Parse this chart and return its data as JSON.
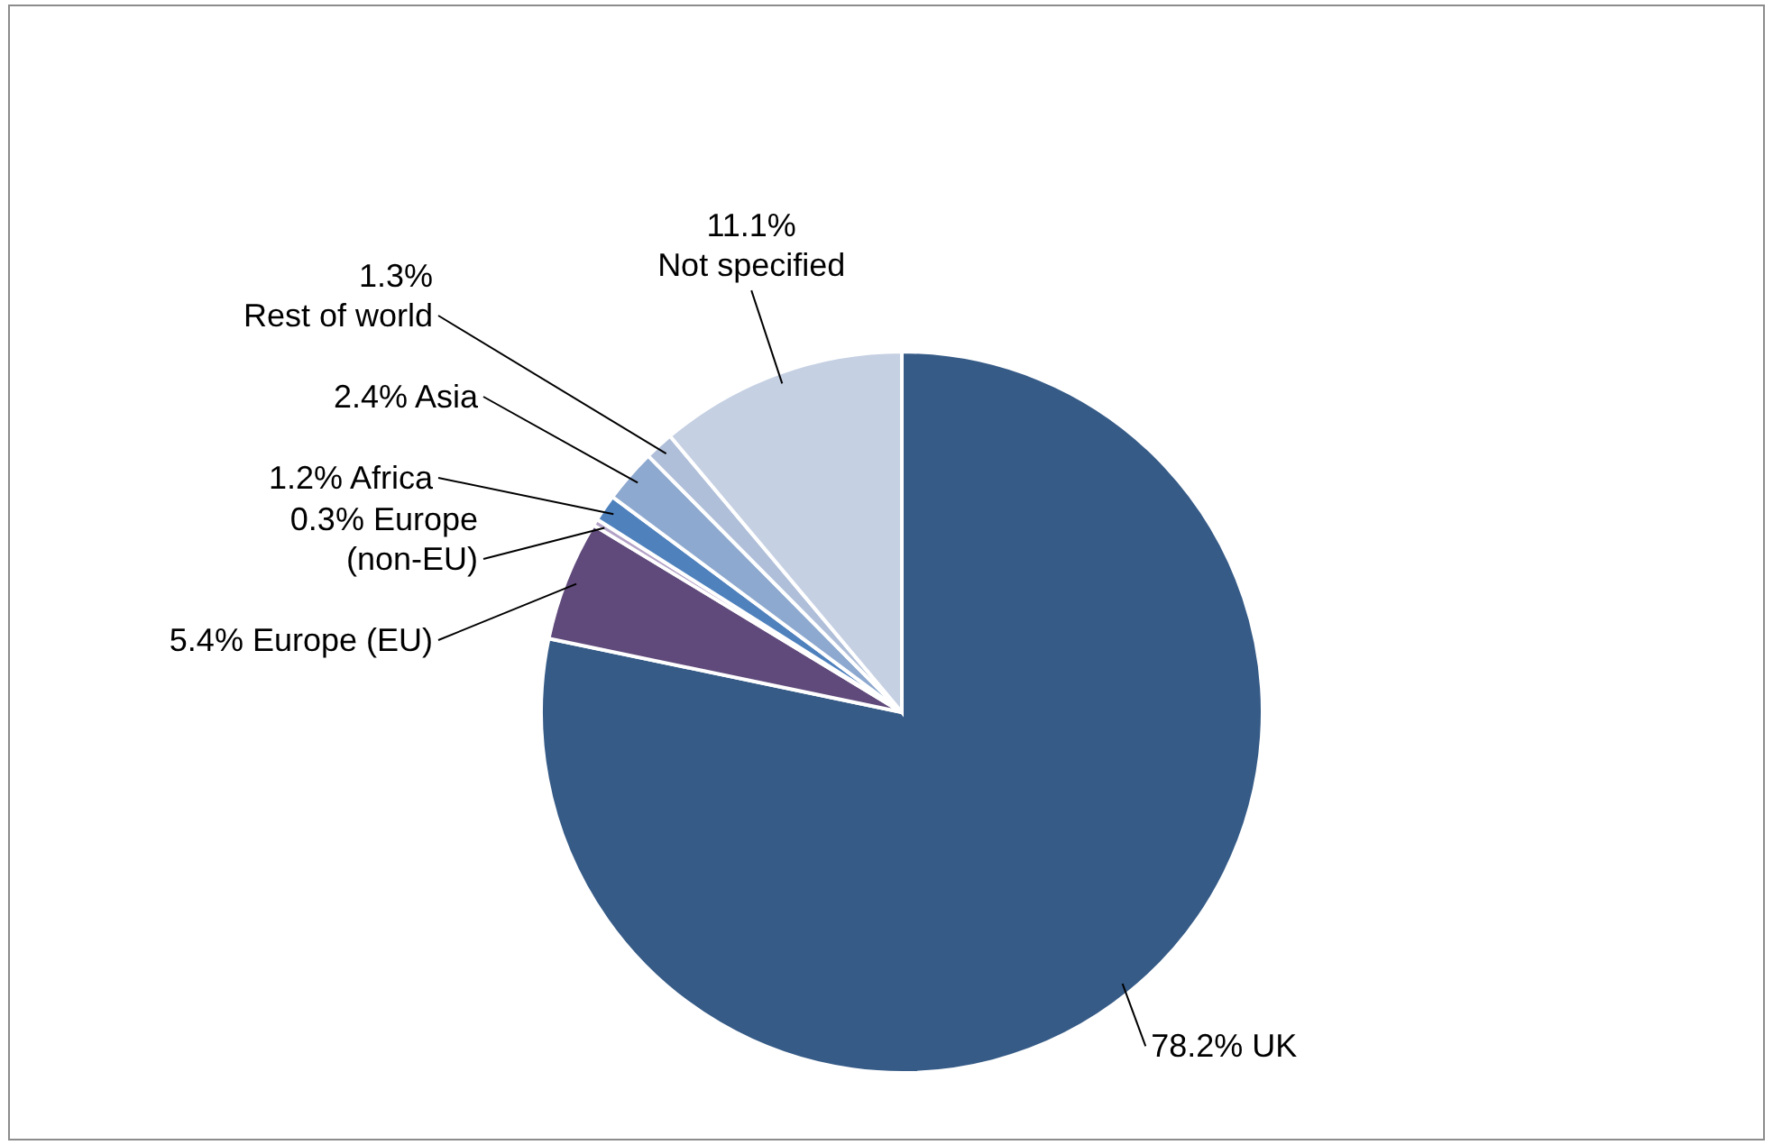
{
  "chart_data": {
    "type": "pie",
    "categories": [
      "UK",
      "Europe (EU)",
      "Europe (non-EU)",
      "Africa",
      "Asia",
      "Rest of world",
      "Not specified"
    ],
    "values": [
      78.2,
      5.4,
      0.3,
      1.2,
      2.4,
      1.3,
      11.1
    ],
    "colors": [
      "#365b87",
      "#604a7b",
      "#b3a2c7",
      "#4f81bd",
      "#8ea9cf",
      "#b0bfd9",
      "#c5d0e3"
    ],
    "value_labels": [
      "78.2%",
      "5.4%",
      "0.3%",
      "1.2%",
      "2.4%",
      "1.3%",
      "11.1%"
    ]
  }
}
